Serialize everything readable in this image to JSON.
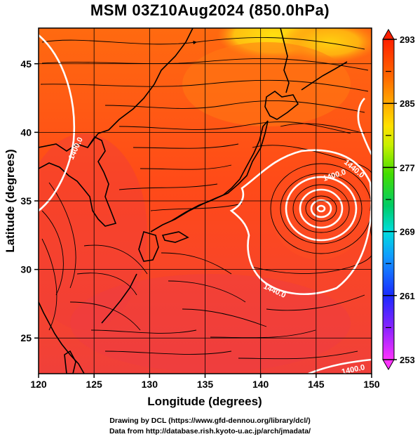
{
  "title": "MSM 03Z10Aug2024 (850.0hPa)",
  "axes": {
    "xlabel": "Longitude (degrees)",
    "ylabel": "Latitude  (degrees)",
    "xticks": [
      "120",
      "125",
      "130",
      "135",
      "140",
      "145",
      "150"
    ],
    "yticks": [
      "25",
      "30",
      "35",
      "40",
      "45"
    ],
    "xlim": [
      120,
      150
    ],
    "ylim": [
      22.4,
      47.6
    ]
  },
  "colorbar": {
    "labels": [
      "293",
      "285",
      "277",
      "269",
      "261",
      "253"
    ],
    "range": [
      253,
      293
    ],
    "colors": [
      "#ff33ff",
      "#aa22ff",
      "#2222ff",
      "#1199ff",
      "#00dddd",
      "#00cc55",
      "#44dd00",
      "#ccee00",
      "#ffdd00",
      "#ff8800",
      "#ff3300",
      "#ff0000"
    ]
  },
  "contours": [
    {
      "label": "1400.0"
    },
    {
      "label": "1440.0"
    },
    {
      "label": "1440.0"
    },
    {
      "label": "1400.0"
    },
    {
      "label": "1400.0"
    }
  ],
  "credits": {
    "line1": "Drawing by DCL (https://www.gfd-dennou.org/library/dcl/)",
    "line2": "Data from http://database.rish.kyoto-u.ac.jp/arch/jmadata/"
  }
}
